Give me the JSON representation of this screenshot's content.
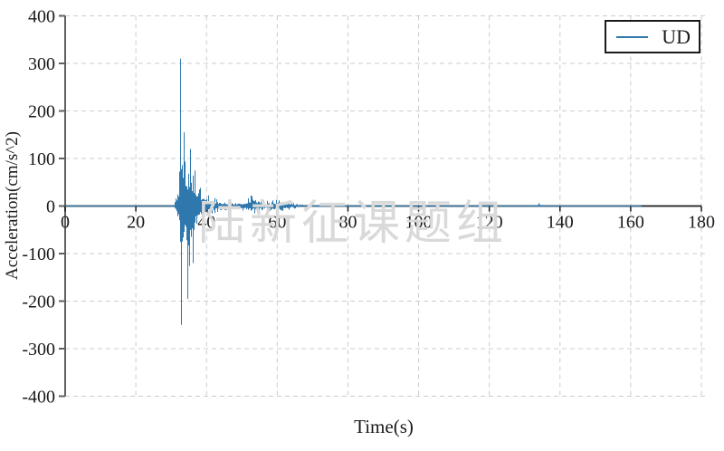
{
  "chart_data": {
    "type": "line",
    "title": "",
    "xlabel": "Time(s)",
    "ylabel": "Acceleration(cm/s^2)",
    "xlim": [
      0,
      180
    ],
    "ylim": [
      -400,
      400
    ],
    "xticks": [
      0,
      20,
      40,
      60,
      80,
      100,
      120,
      140,
      160,
      180
    ],
    "yticks": [
      400,
      300,
      200,
      100,
      0,
      -100,
      -200,
      -300,
      -400
    ],
    "grid": {
      "style": "dashed",
      "color": "#cccccc",
      "horizontal": true,
      "vertical": true
    },
    "legend": {
      "position": "top-right",
      "entries": [
        {
          "label": "UD",
          "color": "#2e78ad"
        }
      ]
    },
    "watermark": "陆新征课题组",
    "series": [
      {
        "name": "UD",
        "color": "#2e78ad",
        "t_start": 0,
        "t_end": 163,
        "peak_positive": {
          "t": 32.5,
          "value": 310
        },
        "peak_negative": {
          "t": 32.8,
          "value": -250
        },
        "envelope_t_up_down": [
          [
            0,
            1,
            1
          ],
          [
            30.2,
            1,
            1
          ],
          [
            30.8,
            6,
            5
          ],
          [
            31.4,
            20,
            18
          ],
          [
            32.0,
            60,
            45
          ],
          [
            32.5,
            310,
            150
          ],
          [
            32.9,
            200,
            250
          ],
          [
            33.6,
            155,
            120
          ],
          [
            34.6,
            120,
            195
          ],
          [
            35.4,
            120,
            110
          ],
          [
            36.3,
            90,
            80
          ],
          [
            37.2,
            65,
            60
          ],
          [
            38.2,
            45,
            40
          ],
          [
            39.5,
            30,
            28
          ],
          [
            41,
            18,
            16
          ],
          [
            43,
            16,
            15
          ],
          [
            45,
            12,
            11
          ],
          [
            47,
            9,
            9
          ],
          [
            49,
            10,
            9
          ],
          [
            51,
            14,
            12
          ],
          [
            53,
            26,
            18
          ],
          [
            55,
            20,
            16
          ],
          [
            57,
            11,
            10
          ],
          [
            59,
            13,
            11
          ],
          [
            60.5,
            17,
            14
          ],
          [
            62,
            13,
            11
          ],
          [
            63.5,
            9,
            8
          ],
          [
            65,
            5,
            5
          ],
          [
            67,
            3,
            3
          ],
          [
            70,
            2,
            2
          ],
          [
            75,
            1.6,
            1.6
          ],
          [
            80,
            1.4,
            1.4
          ],
          [
            90,
            1.2,
            1.2
          ],
          [
            100,
            1.1,
            1.1
          ],
          [
            110,
            1,
            1
          ],
          [
            120,
            1,
            1
          ],
          [
            128,
            1,
            1
          ],
          [
            133.5,
            1.5,
            1.5
          ],
          [
            134,
            6,
            5
          ],
          [
            134.8,
            2.5,
            2.5
          ],
          [
            136,
            1.2,
            1.2
          ],
          [
            145,
            1,
            1
          ],
          [
            163,
            1,
            1
          ]
        ],
        "spikes": [
          [
            32.5,
            310
          ],
          [
            32.8,
            -250
          ],
          [
            33.6,
            155
          ],
          [
            34.6,
            -195
          ],
          [
            35.4,
            120
          ],
          [
            36.2,
            -120
          ],
          [
            134,
            6
          ]
        ]
      }
    ],
    "colors": {
      "background": "#ffffff",
      "y_axis": "#5f5f5f",
      "zero_axis": "#1a1a1a",
      "text": "#1a1a1a",
      "watermark": "#d9d9d9"
    }
  }
}
